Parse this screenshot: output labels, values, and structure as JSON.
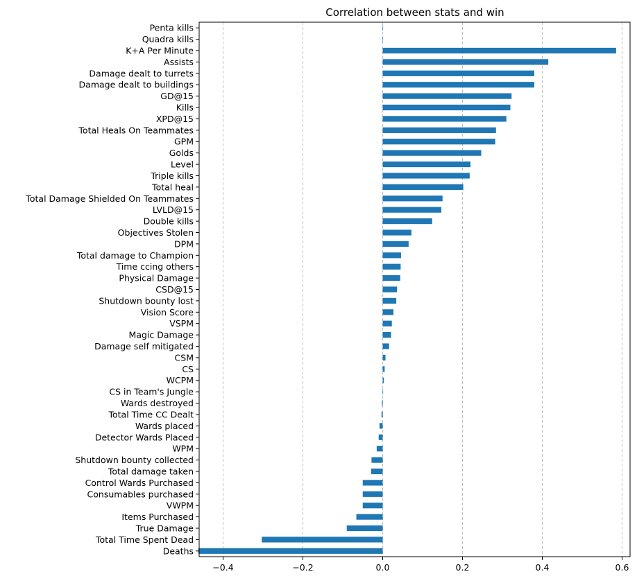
{
  "chart_data": {
    "type": "bar",
    "orientation": "horizontal",
    "title": "Correlation between stats and win",
    "xlabel": "",
    "ylabel": "",
    "xlim": [
      -0.46,
      0.62
    ],
    "xticks": [
      -0.4,
      -0.2,
      0.0,
      0.2,
      0.4,
      0.6
    ],
    "xtick_labels": [
      "−0.4",
      "−0.2",
      "0.0",
      "0.2",
      "0.4",
      "0.6"
    ],
    "grid": "vertical dashed",
    "bar_color": "#1f77b4",
    "categories": [
      "Penta kills",
      "Quadra kills",
      "K+A Per Minute",
      "Assists",
      "Damage dealt to turrets",
      "Damage dealt to buildings",
      "GD@15",
      "Kills",
      "XPD@15",
      "Total Heals On Teammates",
      "GPM",
      "Golds",
      "Level",
      "Triple kills",
      "Total heal",
      "Total Damage Shielded On Teammates",
      "LVLD@15",
      "Double kills",
      "Objectives Stolen",
      "DPM",
      "Total damage to Champion",
      "Time ccing others",
      "Physical Damage",
      "CSD@15",
      "Shutdown bounty lost",
      "Vision Score",
      "VSPM",
      "Magic Damage",
      "Damage self mitigated",
      "CSM",
      "CS",
      "WCPM",
      "CS in Team's Jungle",
      "Wards destroyed",
      "Total Time CC Dealt",
      "Wards placed",
      "Detector Wards Placed",
      "WPM",
      "Shutdown bounty collected",
      "Total damage taken",
      "Control Wards Purchased",
      "Consumables purchased",
      "VWPM",
      "Items Purchased",
      "True Damage",
      "Total Time Spent Dead",
      "Deaths"
    ],
    "values": [
      0.0,
      0.0,
      0.585,
      0.415,
      0.38,
      0.38,
      0.323,
      0.32,
      0.31,
      0.284,
      0.282,
      0.247,
      0.22,
      0.218,
      0.202,
      0.15,
      0.147,
      0.124,
      0.072,
      0.065,
      0.046,
      0.045,
      0.044,
      0.036,
      0.034,
      0.027,
      0.023,
      0.021,
      0.016,
      0.007,
      0.005,
      0.003,
      0.001,
      -0.002,
      -0.003,
      -0.008,
      -0.01,
      -0.015,
      -0.028,
      -0.029,
      -0.05,
      -0.05,
      -0.05,
      -0.066,
      -0.09,
      -0.303,
      -0.462
    ]
  }
}
